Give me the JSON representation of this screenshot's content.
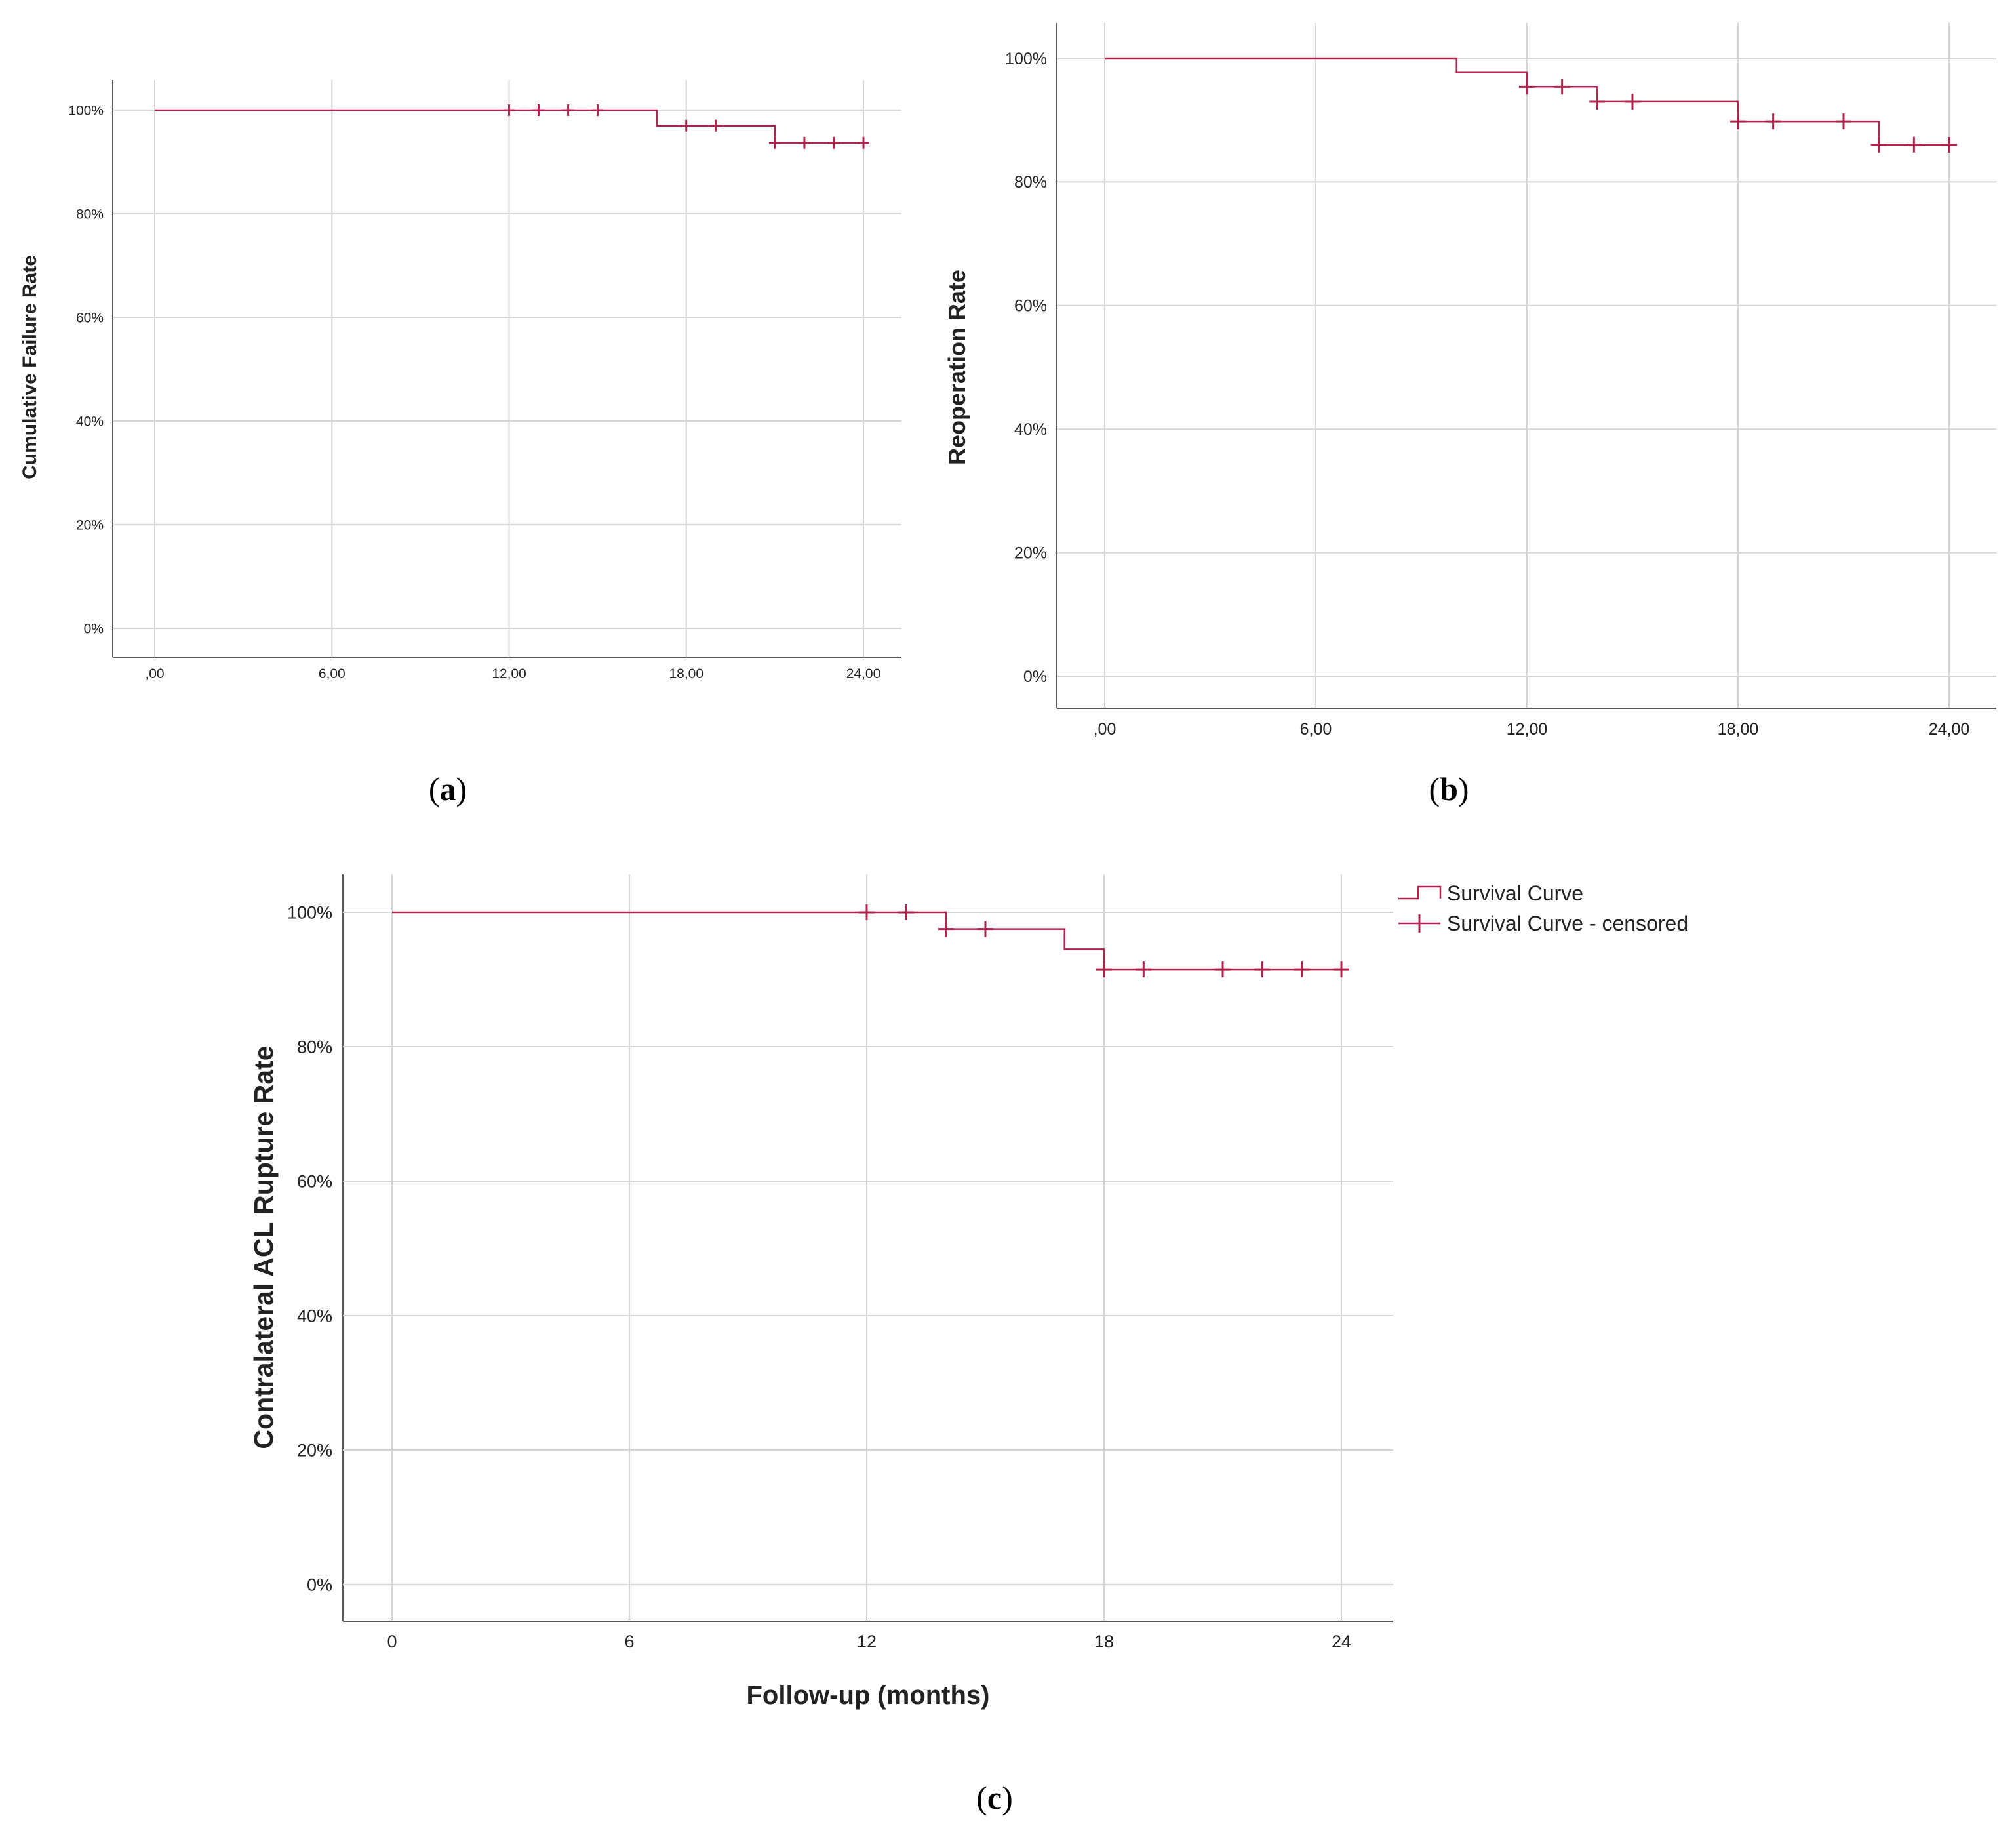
{
  "colors": {
    "curve": "#b0234c",
    "grid": "#d6d6d6",
    "axis": "#5a5a5a",
    "text": "#222222"
  },
  "panels": [
    {
      "id": "a",
      "open": "(",
      "letter": "a",
      "close": ")"
    },
    {
      "id": "b",
      "open": "(",
      "letter": "b",
      "close": ")"
    },
    {
      "id": "c",
      "open": "(",
      "letter": "c",
      "close": ")"
    }
  ],
  "legend": {
    "items": [
      {
        "label": "Survival Curve",
        "kind": "step"
      },
      {
        "label": "Survival Curve - censored",
        "kind": "censor"
      }
    ]
  },
  "chart_data": [
    {
      "id": "a",
      "type": "line",
      "xlabel": "",
      "ylabel": "Cumulative Failure Rate",
      "xlim": [
        0,
        24
      ],
      "ylim": [
        0,
        100
      ],
      "x_ticks": [
        0,
        6,
        12,
        18,
        24
      ],
      "x_tick_labels": [
        ",00",
        "6,00",
        "12,00",
        "18,00",
        "24,00"
      ],
      "y_ticks": [
        0,
        20,
        40,
        60,
        80,
        100
      ],
      "y_tick_labels": [
        "0%",
        "20%",
        "40%",
        "60%",
        "80%",
        "100%"
      ],
      "grid": true,
      "step_points": [
        [
          0,
          100
        ],
        [
          17,
          100
        ],
        [
          17,
          97
        ],
        [
          21,
          97
        ],
        [
          21,
          93.7
        ],
        [
          24,
          93.7
        ]
      ],
      "censored": [
        [
          12,
          100
        ],
        [
          13,
          100
        ],
        [
          14,
          100
        ],
        [
          15,
          100
        ],
        [
          18,
          97
        ],
        [
          19,
          97
        ],
        [
          21,
          93.7
        ],
        [
          22,
          93.7
        ],
        [
          23,
          93.7
        ],
        [
          24,
          93.7
        ]
      ]
    },
    {
      "id": "b",
      "type": "line",
      "xlabel": "",
      "ylabel": "Reoperation Rate",
      "xlim": [
        0,
        24
      ],
      "ylim": [
        0,
        100
      ],
      "x_ticks": [
        0,
        6,
        12,
        18,
        24
      ],
      "x_tick_labels": [
        ",00",
        "6,00",
        "12,00",
        "18,00",
        "24,00"
      ],
      "y_ticks": [
        0,
        20,
        40,
        60,
        80,
        100
      ],
      "y_tick_labels": [
        "0%",
        "20%",
        "40%",
        "60%",
        "80%",
        "100%"
      ],
      "grid": true,
      "step_points": [
        [
          0,
          100
        ],
        [
          10,
          100
        ],
        [
          10,
          97.7
        ],
        [
          12,
          97.7
        ],
        [
          12,
          95.4
        ],
        [
          14,
          95.4
        ],
        [
          14,
          93
        ],
        [
          18,
          93
        ],
        [
          18,
          89.8
        ],
        [
          22,
          89.8
        ],
        [
          22,
          86
        ],
        [
          24,
          86
        ]
      ],
      "censored": [
        [
          12,
          95.4
        ],
        [
          13,
          95.4
        ],
        [
          14,
          93
        ],
        [
          15,
          93
        ],
        [
          18,
          89.8
        ],
        [
          19,
          89.8
        ],
        [
          21,
          89.8
        ],
        [
          22,
          86
        ],
        [
          23,
          86
        ],
        [
          24,
          86
        ]
      ]
    },
    {
      "id": "c",
      "type": "line",
      "xlabel": "Follow-up (months)",
      "ylabel": "Contralateral ACL Rupture Rate",
      "xlim": [
        0,
        24
      ],
      "ylim": [
        0,
        100
      ],
      "x_ticks": [
        0,
        6,
        12,
        18,
        24
      ],
      "x_tick_labels": [
        "0",
        "6",
        "12",
        "18",
        "24"
      ],
      "y_ticks": [
        0,
        20,
        40,
        60,
        80,
        100
      ],
      "y_tick_labels": [
        "0%",
        "20%",
        "40%",
        "60%",
        "80%",
        "100%"
      ],
      "grid": true,
      "legend_position": "top-right, outside",
      "step_points": [
        [
          0,
          100
        ],
        [
          14,
          100
        ],
        [
          14,
          97.5
        ],
        [
          17,
          97.5
        ],
        [
          17,
          94.5
        ],
        [
          18,
          94.5
        ],
        [
          18,
          91.5
        ],
        [
          24,
          91.5
        ]
      ],
      "censored": [
        [
          12,
          100
        ],
        [
          13,
          100
        ],
        [
          14,
          97.5
        ],
        [
          15,
          97.5
        ],
        [
          18,
          91.5
        ],
        [
          19,
          91.5
        ],
        [
          21,
          91.5
        ],
        [
          22,
          91.5
        ],
        [
          23,
          91.5
        ],
        [
          24,
          91.5
        ]
      ]
    }
  ]
}
